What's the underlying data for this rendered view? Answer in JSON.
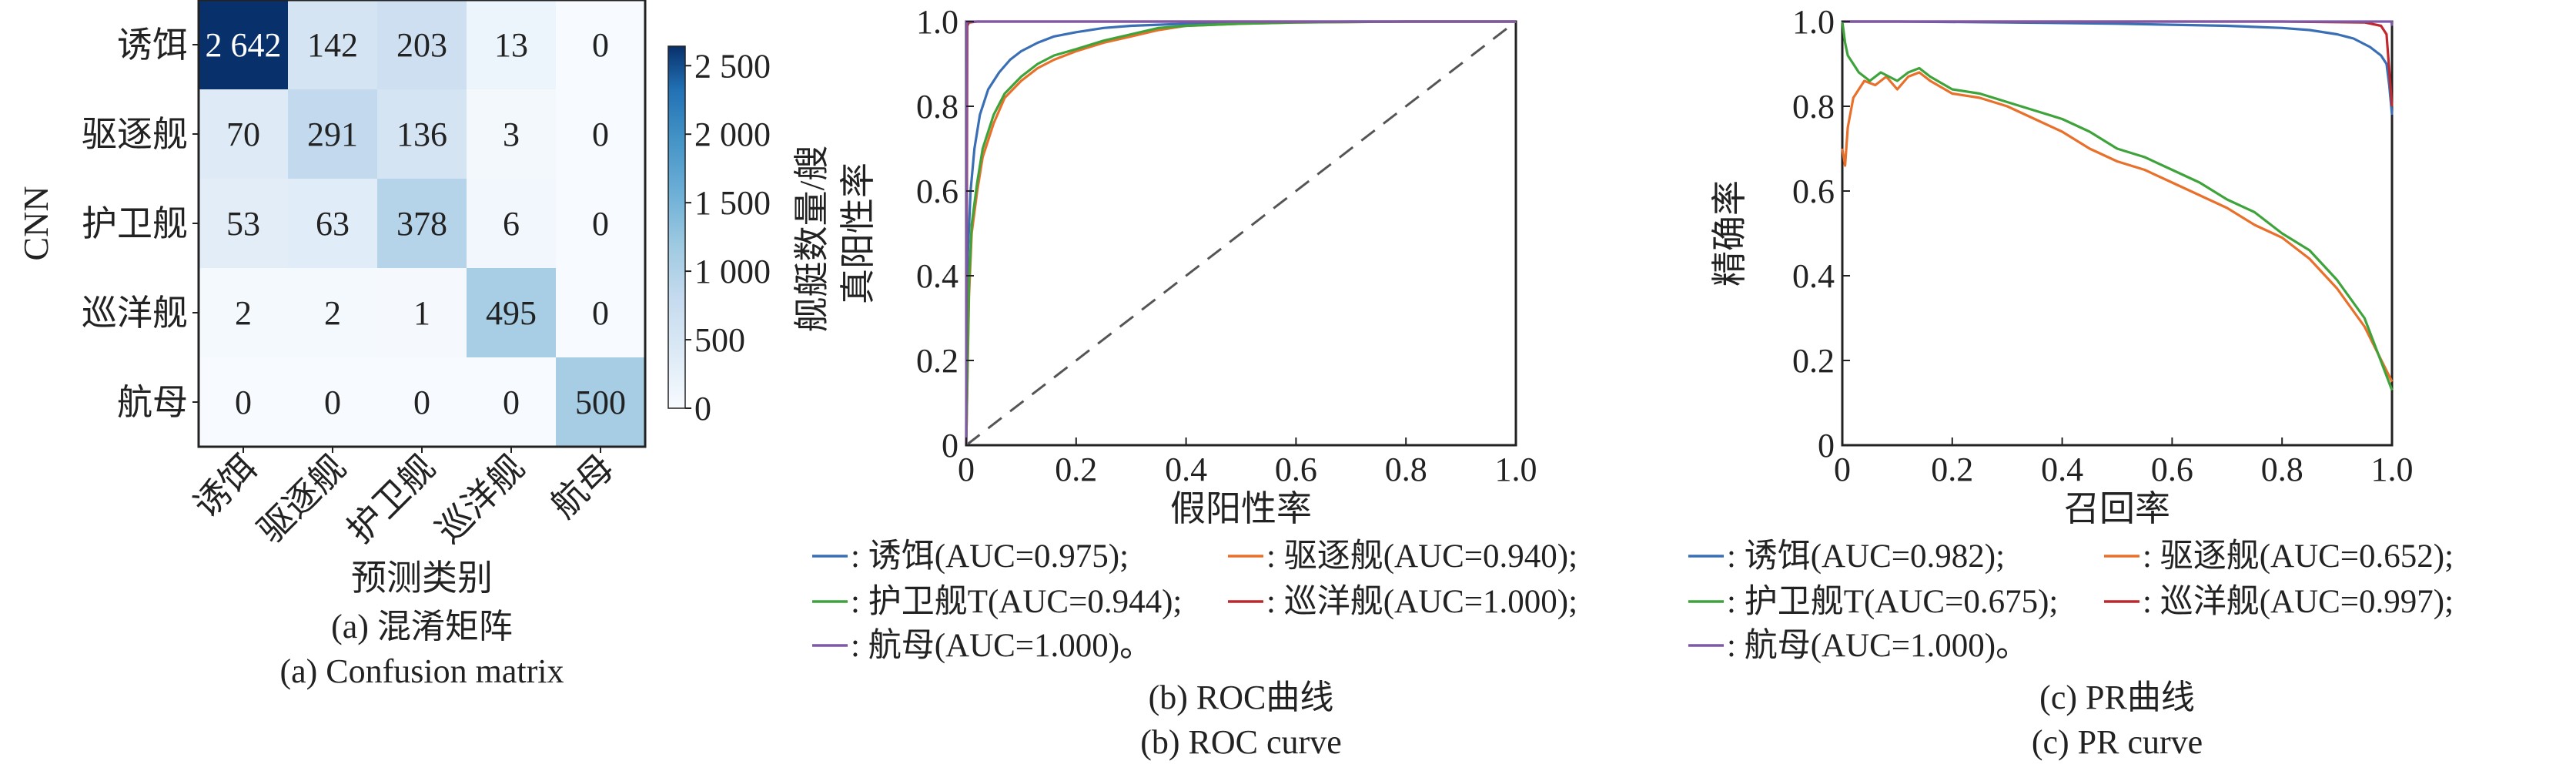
{
  "chart_data": [
    {
      "type": "heatmap",
      "panel": "(a)",
      "ylabel": "CNN",
      "xlabel": "预测类别",
      "caption_cn": "(a) 混淆矩阵",
      "caption_en": "(a) Confusion matrix",
      "row_labels": [
        "诱饵",
        "驱逐舰",
        "护卫舰",
        "巡洋舰",
        "航母"
      ],
      "col_labels": [
        "诱饵",
        "驱逐舰",
        "护卫舰",
        "巡洋舰",
        "航母"
      ],
      "matrix": [
        [
          2642,
          142,
          203,
          13,
          0
        ],
        [
          70,
          291,
          136,
          3,
          0
        ],
        [
          53,
          63,
          378,
          6,
          0
        ],
        [
          2,
          2,
          1,
          495,
          0
        ],
        [
          0,
          0,
          0,
          0,
          500
        ]
      ],
      "cell_text": [
        [
          "2 642",
          "142",
          "203",
          "13",
          "0"
        ],
        [
          "70",
          "291",
          "136",
          "3",
          "0"
        ],
        [
          "53",
          "63",
          "378",
          "6",
          "0"
        ],
        [
          "2",
          "2",
          "1",
          "495",
          "0"
        ],
        [
          "0",
          "0",
          "0",
          "0",
          "500"
        ]
      ],
      "colorbar": {
        "label": "舰艇数量/艘",
        "range": [
          0,
          2642
        ],
        "ticks": [
          0,
          500,
          1000,
          1500,
          2000,
          2500
        ],
        "tick_labels": [
          "0",
          "500",
          "1 000",
          "1 500",
          "2 000",
          "2 500"
        ],
        "colormap": [
          "#f7fbff",
          "#ddeaf6",
          "#c6dbef",
          "#9ecae1",
          "#6baed6",
          "#4292c6",
          "#2171b5",
          "#08306b"
        ]
      }
    },
    {
      "type": "line",
      "panel": "(b)",
      "xlabel": "假阳性率",
      "ylabel": "真阳性率",
      "xlim": [
        0,
        1
      ],
      "ylim": [
        0,
        1
      ],
      "xticks": [
        0,
        0.2,
        0.4,
        0.6,
        0.8,
        1.0
      ],
      "xtick_labels": [
        "0",
        "0.2",
        "0.4",
        "0.6",
        "0.8",
        "1.0"
      ],
      "yticks": [
        0,
        0.2,
        0.4,
        0.6,
        0.8,
        1.0
      ],
      "ytick_labels": [
        "0",
        "0.2",
        "0.4",
        "0.6",
        "0.8",
        "1.0"
      ],
      "caption_cn": "(b) ROC曲线",
      "caption_en": "(b) ROC curve",
      "legend_rows": [
        [
          {
            "series": 0,
            "text": ": 诱饵(AUC=0.975);"
          },
          {
            "series": 1,
            "text": ": 驱逐舰(AUC=0.940);"
          }
        ],
        [
          {
            "series": 2,
            "text": ": 护卫舰T(AUC=0.944);"
          },
          {
            "series": 3,
            "text": ": 巡洋舰(AUC=1.000);"
          }
        ],
        [
          {
            "series": 4,
            "text": ": 航母(AUC=1.000)。"
          }
        ]
      ],
      "diagonal": {
        "x": [
          0,
          1
        ],
        "y": [
          0,
          1
        ],
        "color": "#555555",
        "style": "dashed"
      },
      "series": [
        {
          "color": "#3a6fb5",
          "x": [
            0,
            0.003,
            0.008,
            0.015,
            0.025,
            0.04,
            0.06,
            0.08,
            0.1,
            0.13,
            0.16,
            0.2,
            0.25,
            0.3,
            0.4,
            0.5,
            0.6,
            0.7,
            0.8,
            0.9,
            1.0
          ],
          "y": [
            0,
            0.45,
            0.6,
            0.7,
            0.78,
            0.84,
            0.88,
            0.91,
            0.93,
            0.95,
            0.965,
            0.975,
            0.985,
            0.99,
            0.995,
            0.998,
            0.999,
            1.0,
            1.0,
            1.0,
            1.0
          ]
        },
        {
          "color": "#e8702a",
          "x": [
            0,
            0.005,
            0.01,
            0.02,
            0.03,
            0.05,
            0.07,
            0.1,
            0.13,
            0.16,
            0.2,
            0.25,
            0.3,
            0.35,
            0.4,
            0.5,
            0.6,
            0.8,
            1.0
          ],
          "y": [
            0,
            0.35,
            0.5,
            0.6,
            0.68,
            0.76,
            0.82,
            0.86,
            0.89,
            0.91,
            0.93,
            0.95,
            0.965,
            0.98,
            0.99,
            0.995,
            0.998,
            1.0,
            1.0
          ]
        },
        {
          "color": "#3fa33b",
          "x": [
            0,
            0.005,
            0.01,
            0.02,
            0.03,
            0.05,
            0.07,
            0.1,
            0.13,
            0.16,
            0.2,
            0.25,
            0.3,
            0.35,
            0.4,
            0.5,
            0.6,
            0.8,
            1.0
          ],
          "y": [
            0,
            0.38,
            0.52,
            0.62,
            0.7,
            0.78,
            0.83,
            0.87,
            0.9,
            0.92,
            0.935,
            0.955,
            0.97,
            0.985,
            0.99,
            0.995,
            0.998,
            1.0,
            1.0
          ]
        },
        {
          "color": "#c0282d",
          "x": [
            0,
            0.002,
            0.005,
            0.02,
            0.1,
            0.5,
            1.0
          ],
          "y": [
            0,
            0.99,
            0.998,
            1.0,
            1.0,
            1.0,
            1.0
          ]
        },
        {
          "color": "#7d5aa6",
          "x": [
            0,
            0.001,
            0.01,
            0.5,
            1.0
          ],
          "y": [
            0,
            1.0,
            1.0,
            1.0,
            1.0
          ]
        }
      ]
    },
    {
      "type": "line",
      "panel": "(c)",
      "xlabel": "召回率",
      "ylabel": "精确率",
      "xlim": [
        0,
        1
      ],
      "ylim": [
        0,
        1
      ],
      "xticks": [
        0,
        0.2,
        0.4,
        0.6,
        0.8,
        1.0
      ],
      "xtick_labels": [
        "0",
        "0.2",
        "0.4",
        "0.6",
        "0.8",
        "1.0"
      ],
      "yticks": [
        0,
        0.2,
        0.4,
        0.6,
        0.8,
        1.0
      ],
      "ytick_labels": [
        "0",
        "0.2",
        "0.4",
        "0.6",
        "0.8",
        "1.0"
      ],
      "caption_cn": "(c) PR曲线",
      "caption_en": "(c) PR curve",
      "legend_rows": [
        [
          {
            "series": 0,
            "text": ": 诱饵(AUC=0.982);"
          },
          {
            "series": 1,
            "text": ": 驱逐舰(AUC=0.652);"
          }
        ],
        [
          {
            "series": 2,
            "text": ": 护卫舰T(AUC=0.675);"
          },
          {
            "series": 3,
            "text": ": 巡洋舰(AUC=0.997);"
          }
        ],
        [
          {
            "series": 4,
            "text": ": 航母(AUC=1.000)。"
          }
        ]
      ],
      "series": [
        {
          "color": "#3a6fb5",
          "x": [
            0,
            0.1,
            0.3,
            0.5,
            0.7,
            0.8,
            0.85,
            0.9,
            0.93,
            0.96,
            0.98,
            0.99,
            0.995,
            1.0
          ],
          "y": [
            1.0,
            1.0,
            0.998,
            0.995,
            0.99,
            0.985,
            0.98,
            0.97,
            0.96,
            0.94,
            0.92,
            0.9,
            0.85,
            0.78
          ]
        },
        {
          "color": "#e8702a",
          "x": [
            0,
            0.005,
            0.01,
            0.02,
            0.04,
            0.06,
            0.08,
            0.1,
            0.12,
            0.14,
            0.16,
            0.2,
            0.25,
            0.3,
            0.35,
            0.4,
            0.45,
            0.5,
            0.55,
            0.6,
            0.65,
            0.7,
            0.75,
            0.8,
            0.85,
            0.9,
            0.95,
            1.0
          ],
          "y": [
            0.7,
            0.66,
            0.75,
            0.82,
            0.86,
            0.85,
            0.87,
            0.84,
            0.87,
            0.88,
            0.86,
            0.83,
            0.82,
            0.8,
            0.77,
            0.74,
            0.7,
            0.67,
            0.65,
            0.62,
            0.59,
            0.56,
            0.52,
            0.49,
            0.44,
            0.37,
            0.28,
            0.15
          ]
        },
        {
          "color": "#3fa33b",
          "x": [
            0,
            0.005,
            0.01,
            0.02,
            0.03,
            0.05,
            0.07,
            0.1,
            0.12,
            0.14,
            0.16,
            0.2,
            0.25,
            0.3,
            0.35,
            0.4,
            0.45,
            0.5,
            0.55,
            0.6,
            0.65,
            0.7,
            0.75,
            0.8,
            0.85,
            0.9,
            0.95,
            1.0
          ],
          "y": [
            1.0,
            0.95,
            0.92,
            0.9,
            0.88,
            0.86,
            0.88,
            0.86,
            0.88,
            0.89,
            0.87,
            0.84,
            0.83,
            0.81,
            0.79,
            0.77,
            0.74,
            0.7,
            0.68,
            0.65,
            0.62,
            0.58,
            0.55,
            0.5,
            0.46,
            0.39,
            0.3,
            0.13
          ]
        },
        {
          "color": "#c0282d",
          "x": [
            0,
            0.2,
            0.5,
            0.8,
            0.95,
            0.98,
            0.99,
            1.0
          ],
          "y": [
            1.0,
            1.0,
            1.0,
            1.0,
            0.998,
            0.99,
            0.97,
            0.8
          ]
        },
        {
          "color": "#7d5aa6",
          "x": [
            0,
            0.5,
            0.999,
            1.0
          ],
          "y": [
            1.0,
            1.0,
            1.0,
            0.99
          ]
        }
      ]
    }
  ]
}
